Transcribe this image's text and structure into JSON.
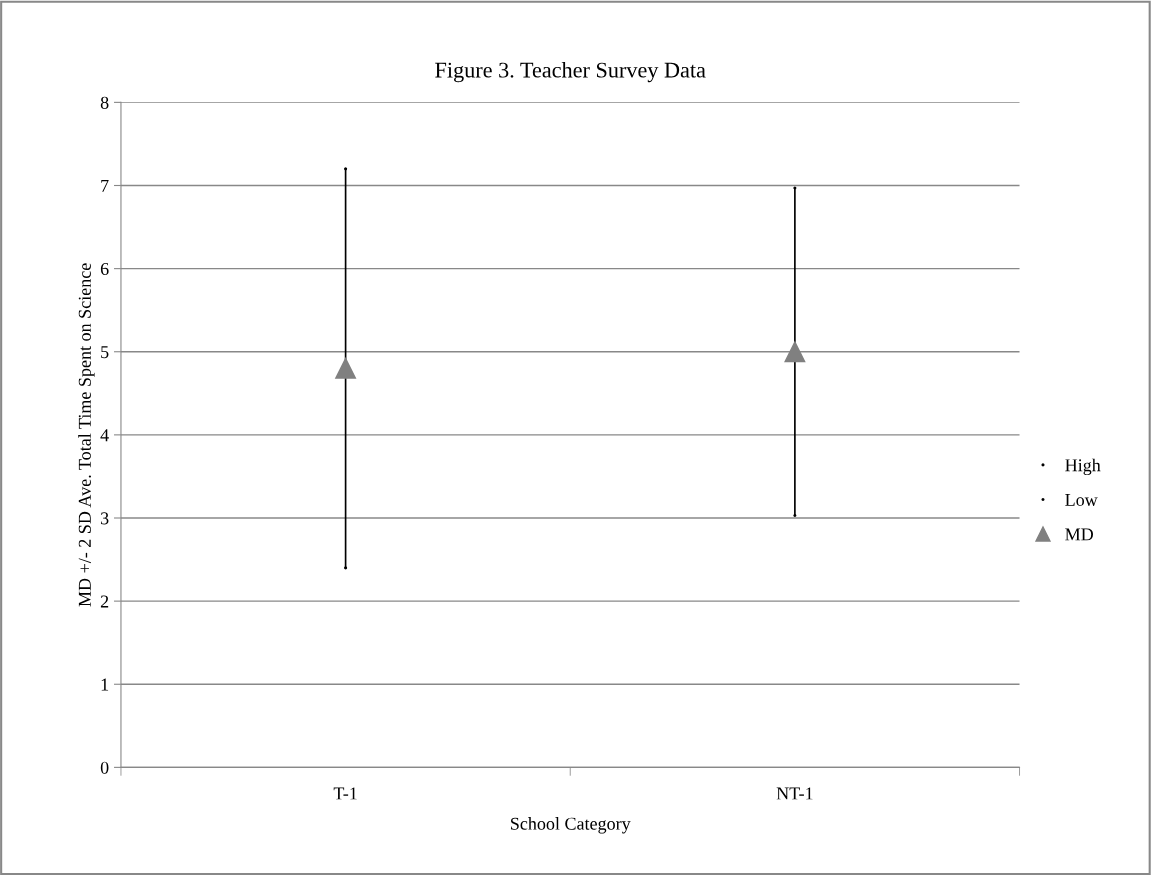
{
  "chart_data": {
    "type": "scatter",
    "title": "Figure 3. Teacher Survey Data",
    "xlabel": "School Category",
    "ylabel": "MD +/- 2 SD Ave. Total Time Spent on Science",
    "categories": [
      "T-1",
      "NT-1"
    ],
    "series": [
      {
        "name": "High",
        "color": "#000000",
        "marker": "none",
        "values": [
          7.2,
          6.97
        ]
      },
      {
        "name": "Low",
        "color": "#000000",
        "marker": "none",
        "values": [
          2.4,
          3.03
        ]
      },
      {
        "name": "MD",
        "color": "#808080",
        "marker": "triangle",
        "values": [
          4.8,
          5.0
        ]
      }
    ],
    "ylim": [
      0,
      8
    ],
    "yticks": [
      0,
      1,
      2,
      3,
      4,
      5,
      6,
      7,
      8
    ],
    "grid": "y",
    "legend": "right"
  }
}
